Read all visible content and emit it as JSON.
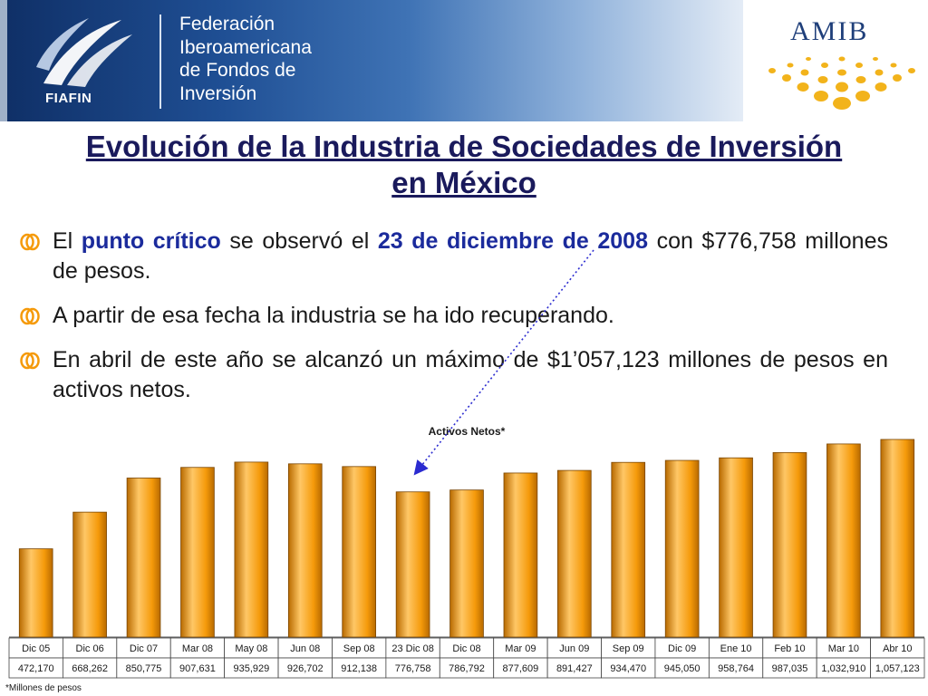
{
  "header": {
    "logo_name": "FIAFIN",
    "federation_lines": [
      "Federación",
      "Iberoamericana",
      "de Fondos de",
      "Inversión"
    ],
    "amib_name": "AMIB"
  },
  "title": {
    "line1": "Evolución de la Industria de Sociedades de Inversión",
    "line2": "en México"
  },
  "bullets": [
    {
      "pre": "El ",
      "h1": "punto crítico",
      "mid": " se observó el ",
      "h2": "23 de diciembre de 2008",
      "post": " con $776,758 millones de pesos."
    },
    {
      "text": "A partir de esa fecha la industria se ha ido recuperando."
    },
    {
      "text": "En abril de este año se alcanzó un máximo de $1’057,123 millones de pesos en activos netos."
    }
  ],
  "colors": {
    "bar_fill": "#f59a0a",
    "bar_highlight": "#ffc766",
    "bar_shade": "#b86a00",
    "arrow": "#2b2bd0",
    "title": "#1a1a5c",
    "highlight_text": "#1b2b9c"
  },
  "chart_data": {
    "type": "bar",
    "title": "Activos Netos*",
    "categories": [
      "Dic 05",
      "Dic 06",
      "Dic 07",
      "Mar 08",
      "May 08",
      "Jun 08",
      "Sep 08",
      "23 Dic 08",
      "Dic 08",
      "Mar 09",
      "Jun 09",
      "Sep 09",
      "Dic 09",
      "Ene 10",
      "Feb 10",
      "Mar 10",
      "Abr 10"
    ],
    "values": [
      472170,
      668262,
      850775,
      907631,
      935929,
      926702,
      912138,
      776758,
      786792,
      877609,
      891427,
      934470,
      945050,
      958764,
      987035,
      1032910,
      1057123
    ],
    "value_labels": [
      "472,170",
      "668,262",
      "850,775",
      "907,631",
      "935,929",
      "926,702",
      "912,138",
      "776,758",
      "786,792",
      "877,609",
      "891,427",
      "934,470",
      "945,050",
      "958,764",
      "987,035",
      "1,032,910",
      "1,057,123"
    ],
    "footnote": "*Millones de pesos",
    "ylim": [
      0,
      1110000
    ],
    "annotation": {
      "category": "23 Dic 08",
      "shape": "dotted-arrow",
      "from": "bullet-1-date"
    }
  }
}
